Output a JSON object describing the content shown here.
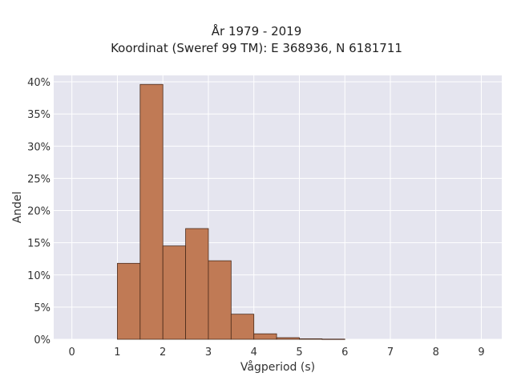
{
  "chart_data": {
    "type": "bar",
    "title": "År 1979 - 2019",
    "subtitle": "Koordinat (Sweref 99 TM): E 368936, N 6181711",
    "xlabel": "Vågperiod (s)",
    "ylabel": "Andel",
    "xlim": [
      -0.4,
      9.45
    ],
    "ylim": [
      0,
      41
    ],
    "x_ticks": [
      "0",
      "1",
      "2",
      "3",
      "4",
      "5",
      "6",
      "7",
      "8",
      "9"
    ],
    "y_ticks": [
      "0%",
      "5%",
      "10%",
      "15%",
      "20%",
      "25%",
      "30%",
      "35%",
      "40%"
    ],
    "bin_width": 0.5,
    "bins": [
      {
        "start": 1.0,
        "end": 1.5,
        "value": 11.8
      },
      {
        "start": 1.5,
        "end": 2.0,
        "value": 39.6
      },
      {
        "start": 2.0,
        "end": 2.5,
        "value": 14.5
      },
      {
        "start": 2.5,
        "end": 3.0,
        "value": 17.2
      },
      {
        "start": 3.0,
        "end": 3.5,
        "value": 12.2
      },
      {
        "start": 3.5,
        "end": 4.0,
        "value": 3.9
      },
      {
        "start": 4.0,
        "end": 4.5,
        "value": 0.85
      },
      {
        "start": 4.5,
        "end": 5.0,
        "value": 0.25
      },
      {
        "start": 5.0,
        "end": 5.5,
        "value": 0.08
      },
      {
        "start": 5.5,
        "end": 6.0,
        "value": 0.03
      }
    ],
    "grid": true,
    "colors": {
      "bar_fill": "#c07a55",
      "bar_edge": "#4a2a1a",
      "plot_background": "#e5e5ef",
      "grid": "#ffffff"
    }
  }
}
